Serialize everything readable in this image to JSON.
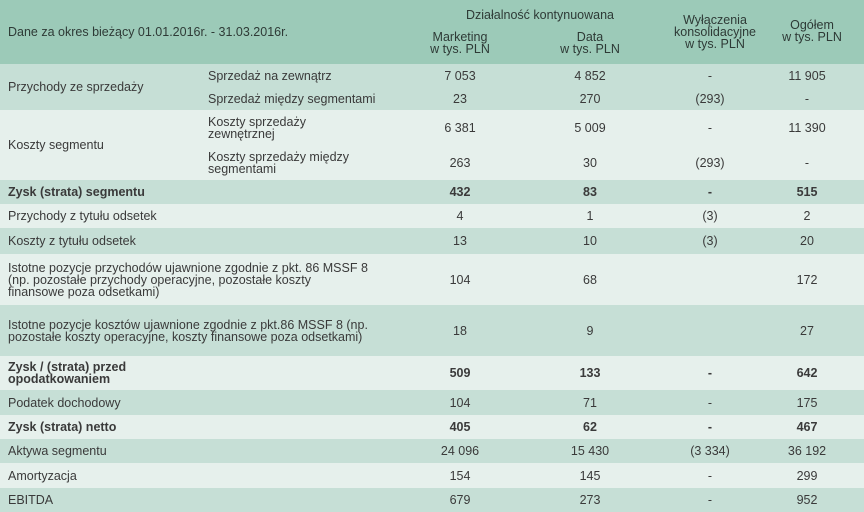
{
  "header": {
    "period": "Dane za okres bieżący 01.01.2016r. - 31.03.2016r.",
    "group": "Działalność kontynuowana",
    "col_marketing_1": "Marketing",
    "col_marketing_2": "w tys. PLN",
    "col_data_1": "Data",
    "col_data_2": "w tys. PLN",
    "col_wyl_1": "Wyłączenia",
    "col_wyl_2": "konsolidacyjne",
    "col_wyl_3": "w tys. PLN",
    "col_og_1": "Ogółem",
    "col_og_2": "w tys. PLN"
  },
  "rows": {
    "przychody_label": "Przychody ze sprzedaży",
    "r1": {
      "sub": "Sprzedaż na zewnątrz",
      "mk": "7 053",
      "dt": "4 852",
      "wy": "-",
      "og": "11 905"
    },
    "r2": {
      "sub": "Sprzedaż między segmentami",
      "mk": "23",
      "dt": "270",
      "wy": "(293)",
      "og": "-"
    },
    "koszty_label": "Koszty segmentu",
    "r3": {
      "sub": "Koszty sprzedaży zewnętrznej",
      "mk": "6 381",
      "dt": "5 009",
      "wy": "-",
      "og": "11 390"
    },
    "r4": {
      "sub": "Koszty sprzedaży między segmentami",
      "mk": "263",
      "dt": "30",
      "wy": "(293)",
      "og": "-"
    },
    "r5": {
      "label": "Zysk (strata) segmentu",
      "mk": "432",
      "dt": "83",
      "wy": "-",
      "og": "515"
    },
    "r6": {
      "label": "Przychody z tytułu odsetek",
      "mk": "4",
      "dt": "1",
      "wy": "(3)",
      "og": "2"
    },
    "r7": {
      "label": "Koszty z tytułu odsetek",
      "mk": "13",
      "dt": "10",
      "wy": "(3)",
      "og": "20"
    },
    "r8": {
      "label": "Istotne pozycje przychodów ujawnione zgodnie z pkt. 86 MSSF 8 (np. pozostałe przychody operacyjne, pozostałe koszty finansowe poza odsetkami)",
      "mk": "104",
      "dt": "68",
      "wy": "",
      "og": "172"
    },
    "r9": {
      "label": "Istotne pozycje kosztów ujawnione zgodnie z pkt.86 MSSF 8 (np. pozostałe koszty operacyjne, koszty finansowe poza odsetkami)",
      "mk": "18",
      "dt": "9",
      "wy": "",
      "og": "27"
    },
    "r10": {
      "label": "Zysk / (strata) przed opodatkowaniem",
      "mk": "509",
      "dt": "133",
      "wy": "-",
      "og": "642"
    },
    "r11": {
      "label": "Podatek dochodowy",
      "mk": "104",
      "dt": "71",
      "wy": "-",
      "og": "175"
    },
    "r12": {
      "label": "Zysk (strata) netto",
      "mk": "405",
      "dt": "62",
      "wy": "-",
      "og": "467"
    },
    "r13": {
      "label": "Aktywa segmentu",
      "mk": "24 096",
      "dt": "15 430",
      "wy": "(3 334)",
      "og": "36 192"
    },
    "r14": {
      "label": "Amortyzacja",
      "mk": "154",
      "dt": "145",
      "wy": "-",
      "og": "299"
    },
    "r15": {
      "label": "EBITDA",
      "mk": "679",
      "dt": "273",
      "wy": "-",
      "og": "952"
    }
  }
}
